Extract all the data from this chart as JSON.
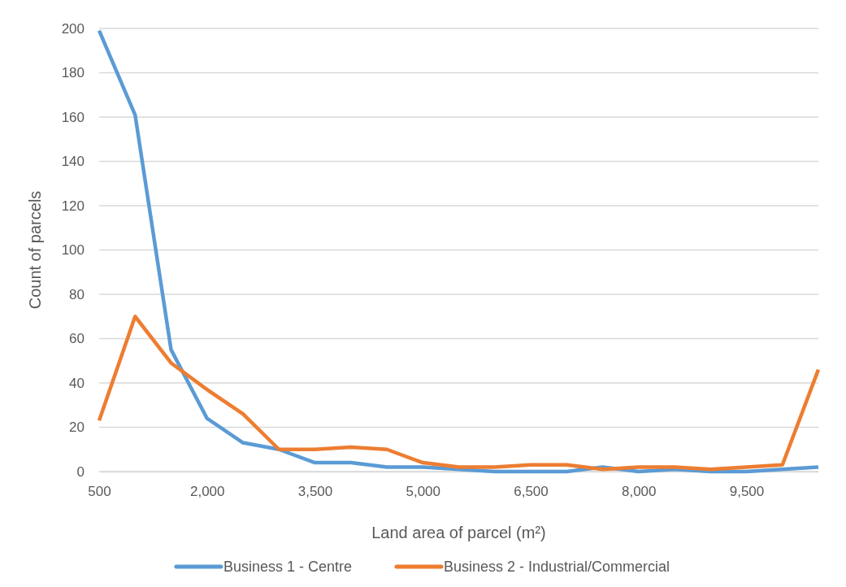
{
  "chart_data": {
    "type": "line",
    "xlabel": "Land area of parcel (m²)",
    "ylabel": "Count of parcels",
    "categories": [
      "500",
      null,
      null,
      "2,000",
      null,
      null,
      "3,500",
      null,
      null,
      "5,000",
      null,
      null,
      "6,500",
      null,
      null,
      "8,000",
      null,
      null,
      "9,500",
      null,
      null
    ],
    "series": [
      {
        "name": "Business 1 - Centre",
        "color": "#5b9bd5",
        "values": [
          199,
          161,
          55,
          24,
          13,
          10,
          4,
          4,
          2,
          2,
          1,
          0,
          0,
          0,
          2,
          0,
          1,
          0,
          0,
          1,
          2
        ]
      },
      {
        "name": "Business 2 - Industrial/Commercial",
        "color": "#ed7d31",
        "values": [
          23,
          70,
          49,
          37,
          26,
          10,
          10,
          11,
          10,
          4,
          2,
          2,
          3,
          3,
          1,
          2,
          2,
          1,
          2,
          3,
          46
        ]
      }
    ],
    "ylim": [
      0,
      200
    ],
    "yticks": [
      0,
      20,
      40,
      60,
      80,
      100,
      120,
      140,
      160,
      180,
      200
    ],
    "grid": "y",
    "legend": "bottom",
    "marker": "none",
    "line_style": "solid"
  }
}
